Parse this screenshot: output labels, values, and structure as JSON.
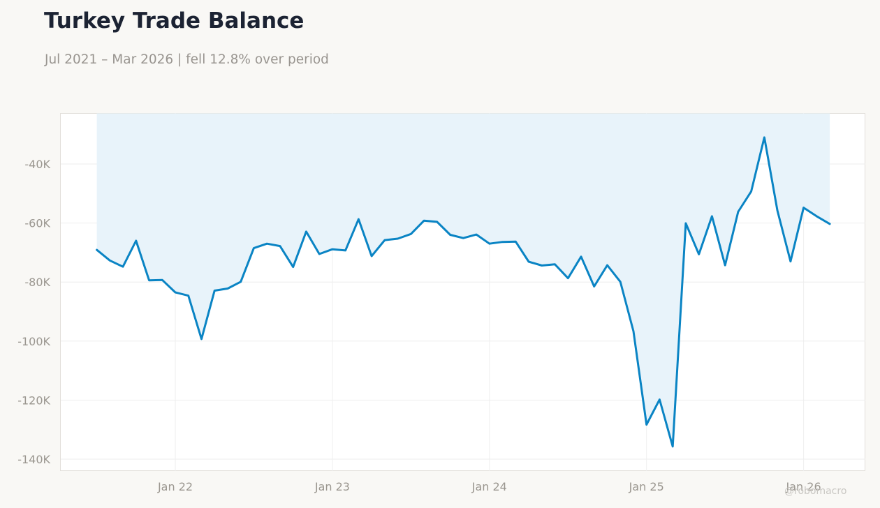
{
  "header": {
    "title": "Turkey Trade Balance",
    "subtitle": "Jul 2021 – Mar 2026 | fell 12.8% over period"
  },
  "watermark": "@robomacro",
  "colors": {
    "line": "#0a84c4",
    "fill": "#e8f3fa",
    "page_background": "#f9f8f5",
    "plot_background": "#ffffff",
    "grid": "#eeeeee",
    "tick_text": "#9a968f"
  },
  "chart_data": {
    "type": "area",
    "title": "Turkey Trade Balance",
    "subtitle": "Jul 2021 – Mar 2026 | fell 12.8% over period",
    "xlabel": "",
    "ylabel": "",
    "x_start": "2021-07",
    "x_end": "2026-03",
    "x_ticks": [
      {
        "date": "2022-01",
        "label": "Jan 22"
      },
      {
        "date": "2023-01",
        "label": "Jan 23"
      },
      {
        "date": "2024-01",
        "label": "Jan 24"
      },
      {
        "date": "2025-01",
        "label": "Jan 25"
      },
      {
        "date": "2026-01",
        "label": "Jan 26"
      }
    ],
    "y_ticks": [
      {
        "value": -40000,
        "label": "-40K"
      },
      {
        "value": -60000,
        "label": "-60K"
      },
      {
        "value": -80000,
        "label": "-80K"
      },
      {
        "value": -100000,
        "label": "-100K"
      },
      {
        "value": -120000,
        "label": "-120K"
      },
      {
        "value": -140000,
        "label": "-140K"
      }
    ],
    "ylim": [
      -144000,
      -22500
    ],
    "grid": true,
    "legend": "none",
    "series": [
      {
        "x": [
          "2021-07",
          "2021-08",
          "2021-09",
          "2021-10",
          "2021-11",
          "2021-12",
          "2022-01",
          "2022-02",
          "2022-03",
          "2022-04",
          "2022-05",
          "2022-06",
          "2022-07",
          "2022-08",
          "2022-09",
          "2022-10",
          "2022-11",
          "2022-12",
          "2023-01",
          "2023-02",
          "2023-03",
          "2023-04",
          "2023-05",
          "2023-06",
          "2023-07",
          "2023-08",
          "2023-09",
          "2023-10",
          "2023-11",
          "2023-12",
          "2024-01",
          "2024-02",
          "2024-03",
          "2024-04",
          "2024-05",
          "2024-06",
          "2024-07",
          "2024-08",
          "2024-09",
          "2024-10",
          "2024-11",
          "2024-12",
          "2025-01",
          "2025-02",
          "2025-03",
          "2025-04",
          "2025-05",
          "2025-06",
          "2025-07",
          "2025-08",
          "2025-09",
          "2025-10",
          "2025-11",
          "2025-12",
          "2026-01",
          "2026-02",
          "2026-03"
        ],
        "values": [
          -69100,
          -72700,
          -74800,
          -66000,
          -79400,
          -79300,
          -83500,
          -84600,
          -99300,
          -82900,
          -82200,
          -79900,
          -68500,
          -67000,
          -67800,
          -74900,
          -62900,
          -70500,
          -68900,
          -69300,
          -58700,
          -71200,
          -65800,
          -65300,
          -63700,
          -59200,
          -59600,
          -64000,
          -65100,
          -63900,
          -67000,
          -66400,
          -66300,
          -73100,
          -74400,
          -74000,
          -78700,
          -71400,
          -81500,
          -74300,
          -79900,
          -96700,
          -128300,
          -119800,
          -135700,
          -60100,
          -70600,
          -57700,
          -74300,
          -56200,
          -49300,
          -31000,
          -55800,
          -73000,
          -54800,
          -57700,
          -60300
        ]
      }
    ]
  }
}
